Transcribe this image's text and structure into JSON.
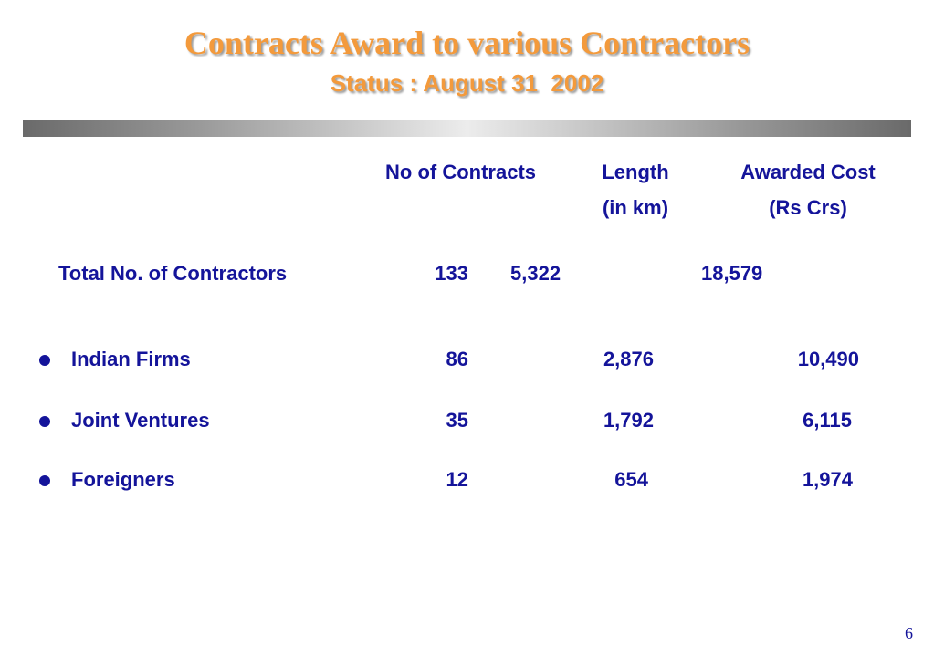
{
  "title": "Contracts Award to various Contractors",
  "subtitle": "Status : August 31  2002",
  "table": {
    "headers": {
      "contracts": "No of Contracts",
      "length_line1": "Length",
      "length_line2": "(in km)",
      "cost_line1": "Awarded Cost",
      "cost_line2": "(Rs Crs)"
    },
    "total": {
      "label": "Total No. of Contractors",
      "contracts": "133",
      "length": "5,322",
      "cost": "18,579"
    },
    "rows": [
      {
        "label": "Indian Firms",
        "contracts": "86",
        "length": "2,876",
        "cost": "10,490"
      },
      {
        "label": "Joint Ventures",
        "contracts": "35",
        "length": "1,792",
        "cost": "6,115"
      },
      {
        "label": "Foreigners",
        "contracts": "12",
        "length": "654",
        "cost": "1,974"
      }
    ]
  },
  "page_number": "6",
  "colors": {
    "title": "#f39a3c",
    "text": "#14149a"
  }
}
